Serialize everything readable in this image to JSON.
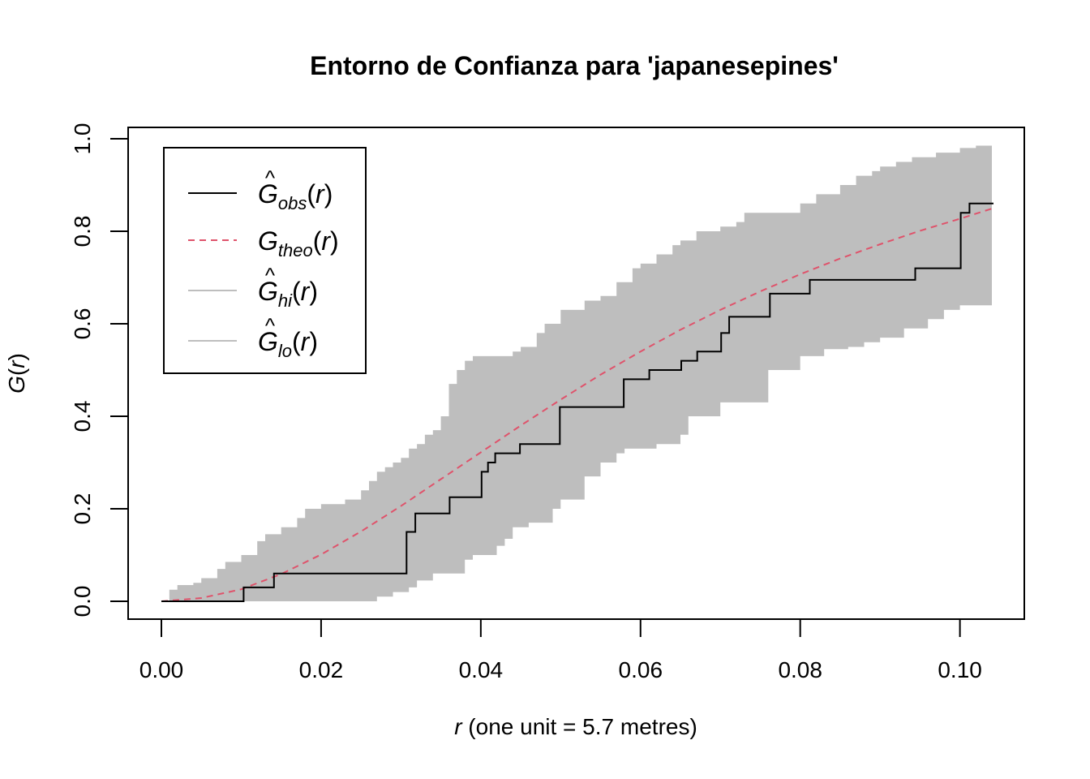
{
  "chart_data": {
    "type": "area",
    "title": "Entorno de Confianza para 'japanesepines'",
    "xlabel": {
      "var": "r",
      "rest": " (one unit = 5.7 metres)"
    },
    "ylabel": {
      "fn": "G",
      "arg": "r"
    },
    "xlim": [
      0.0,
      0.104
    ],
    "ylim": [
      0.0,
      1.0
    ],
    "xticks": [
      0.0,
      0.02,
      0.04,
      0.06,
      0.08,
      0.1
    ],
    "xtick_labels": [
      "0.00",
      "0.02",
      "0.04",
      "0.06",
      "0.08",
      "0.10"
    ],
    "yticks": [
      0.0,
      0.2,
      0.4,
      0.6,
      0.8,
      1.0
    ],
    "ytick_labels": [
      "0.0",
      "0.2",
      "0.4",
      "0.6",
      "0.8",
      "1.0"
    ],
    "grid": false,
    "legend_position": "top-left",
    "colors": {
      "obs": "#000000",
      "theo": "#DF536B",
      "band": "#BEBEBE"
    },
    "series": [
      {
        "key": "obs",
        "legend": {
          "base": "G",
          "hat": true,
          "sub": "obs",
          "arg": "r"
        },
        "style": "solid",
        "step": true,
        "x": [
          0.0,
          0.0097,
          0.0103,
          0.0141,
          0.0299,
          0.0307,
          0.0318,
          0.0361,
          0.0401,
          0.0409,
          0.0418,
          0.0449,
          0.0499,
          0.0579,
          0.0589,
          0.0611,
          0.0651,
          0.0671,
          0.0701,
          0.0711,
          0.0762,
          0.0812,
          0.0944,
          0.1001,
          0.1012,
          0.1042
        ],
        "y": [
          0.0,
          0.0,
          0.03,
          0.06,
          0.06,
          0.15,
          0.19,
          0.225,
          0.28,
          0.3,
          0.32,
          0.34,
          0.42,
          0.48,
          0.48,
          0.5,
          0.52,
          0.54,
          0.58,
          0.615,
          0.665,
          0.695,
          0.72,
          0.84,
          0.86,
          0.86
        ]
      },
      {
        "key": "theo",
        "legend": {
          "base": "G",
          "hat": false,
          "sub": "theo",
          "arg": "r"
        },
        "style": "dashed",
        "step": false,
        "x": [
          0.0,
          0.005,
          0.01,
          0.015,
          0.02,
          0.025,
          0.03,
          0.035,
          0.04,
          0.045,
          0.05,
          0.055,
          0.06,
          0.065,
          0.07,
          0.075,
          0.08,
          0.085,
          0.09,
          0.095,
          0.1,
          0.104
        ],
        "y": [
          0.0,
          0.007,
          0.026,
          0.059,
          0.101,
          0.151,
          0.206,
          0.264,
          0.322,
          0.38,
          0.436,
          0.49,
          0.54,
          0.587,
          0.63,
          0.67,
          0.707,
          0.741,
          0.772,
          0.801,
          0.827,
          0.849
        ]
      },
      {
        "key": "hi",
        "legend": {
          "base": "G",
          "hat": true,
          "sub": "hi",
          "arg": "r"
        },
        "style": "band-upper",
        "step": true,
        "x": [
          0.0,
          0.001,
          0.002,
          0.004,
          0.005,
          0.007,
          0.008,
          0.01,
          0.012,
          0.013,
          0.015,
          0.017,
          0.018,
          0.02,
          0.023,
          0.025,
          0.026,
          0.027,
          0.028,
          0.029,
          0.03,
          0.031,
          0.032,
          0.033,
          0.034,
          0.035,
          0.036,
          0.037,
          0.038,
          0.039,
          0.04,
          0.044,
          0.045,
          0.047,
          0.048,
          0.05,
          0.053,
          0.055,
          0.057,
          0.059,
          0.06,
          0.062,
          0.064,
          0.065,
          0.067,
          0.07,
          0.072,
          0.073,
          0.075,
          0.078,
          0.08,
          0.082,
          0.085,
          0.087,
          0.089,
          0.09,
          0.092,
          0.094,
          0.095,
          0.097,
          0.099,
          0.1,
          0.102,
          0.104
        ],
        "y": [
          0.0,
          0.025,
          0.035,
          0.04,
          0.05,
          0.07,
          0.085,
          0.1,
          0.13,
          0.145,
          0.16,
          0.18,
          0.2,
          0.21,
          0.22,
          0.24,
          0.26,
          0.28,
          0.29,
          0.3,
          0.31,
          0.33,
          0.34,
          0.36,
          0.37,
          0.4,
          0.47,
          0.5,
          0.52,
          0.53,
          0.53,
          0.54,
          0.55,
          0.58,
          0.6,
          0.63,
          0.65,
          0.66,
          0.69,
          0.72,
          0.73,
          0.75,
          0.77,
          0.78,
          0.8,
          0.81,
          0.82,
          0.84,
          0.84,
          0.84,
          0.86,
          0.88,
          0.9,
          0.92,
          0.93,
          0.94,
          0.95,
          0.96,
          0.96,
          0.97,
          0.97,
          0.98,
          0.985,
          0.985
        ]
      },
      {
        "key": "lo",
        "legend": {
          "base": "G",
          "hat": true,
          "sub": "lo",
          "arg": "r"
        },
        "style": "band-lower",
        "step": true,
        "x": [
          0.0,
          0.026,
          0.027,
          0.029,
          0.031,
          0.032,
          0.034,
          0.038,
          0.039,
          0.042,
          0.043,
          0.044,
          0.046,
          0.049,
          0.05,
          0.053,
          0.055,
          0.057,
          0.058,
          0.062,
          0.065,
          0.066,
          0.07,
          0.076,
          0.08,
          0.083,
          0.086,
          0.088,
          0.09,
          0.093,
          0.096,
          0.098,
          0.1,
          0.1035,
          0.104
        ],
        "y": [
          0.0,
          0.0,
          0.01,
          0.02,
          0.03,
          0.045,
          0.06,
          0.09,
          0.1,
          0.12,
          0.135,
          0.16,
          0.17,
          0.2,
          0.22,
          0.27,
          0.3,
          0.32,
          0.33,
          0.34,
          0.36,
          0.4,
          0.43,
          0.5,
          0.53,
          0.545,
          0.55,
          0.56,
          0.57,
          0.59,
          0.61,
          0.63,
          0.64,
          0.64,
          0.67
        ]
      }
    ]
  }
}
